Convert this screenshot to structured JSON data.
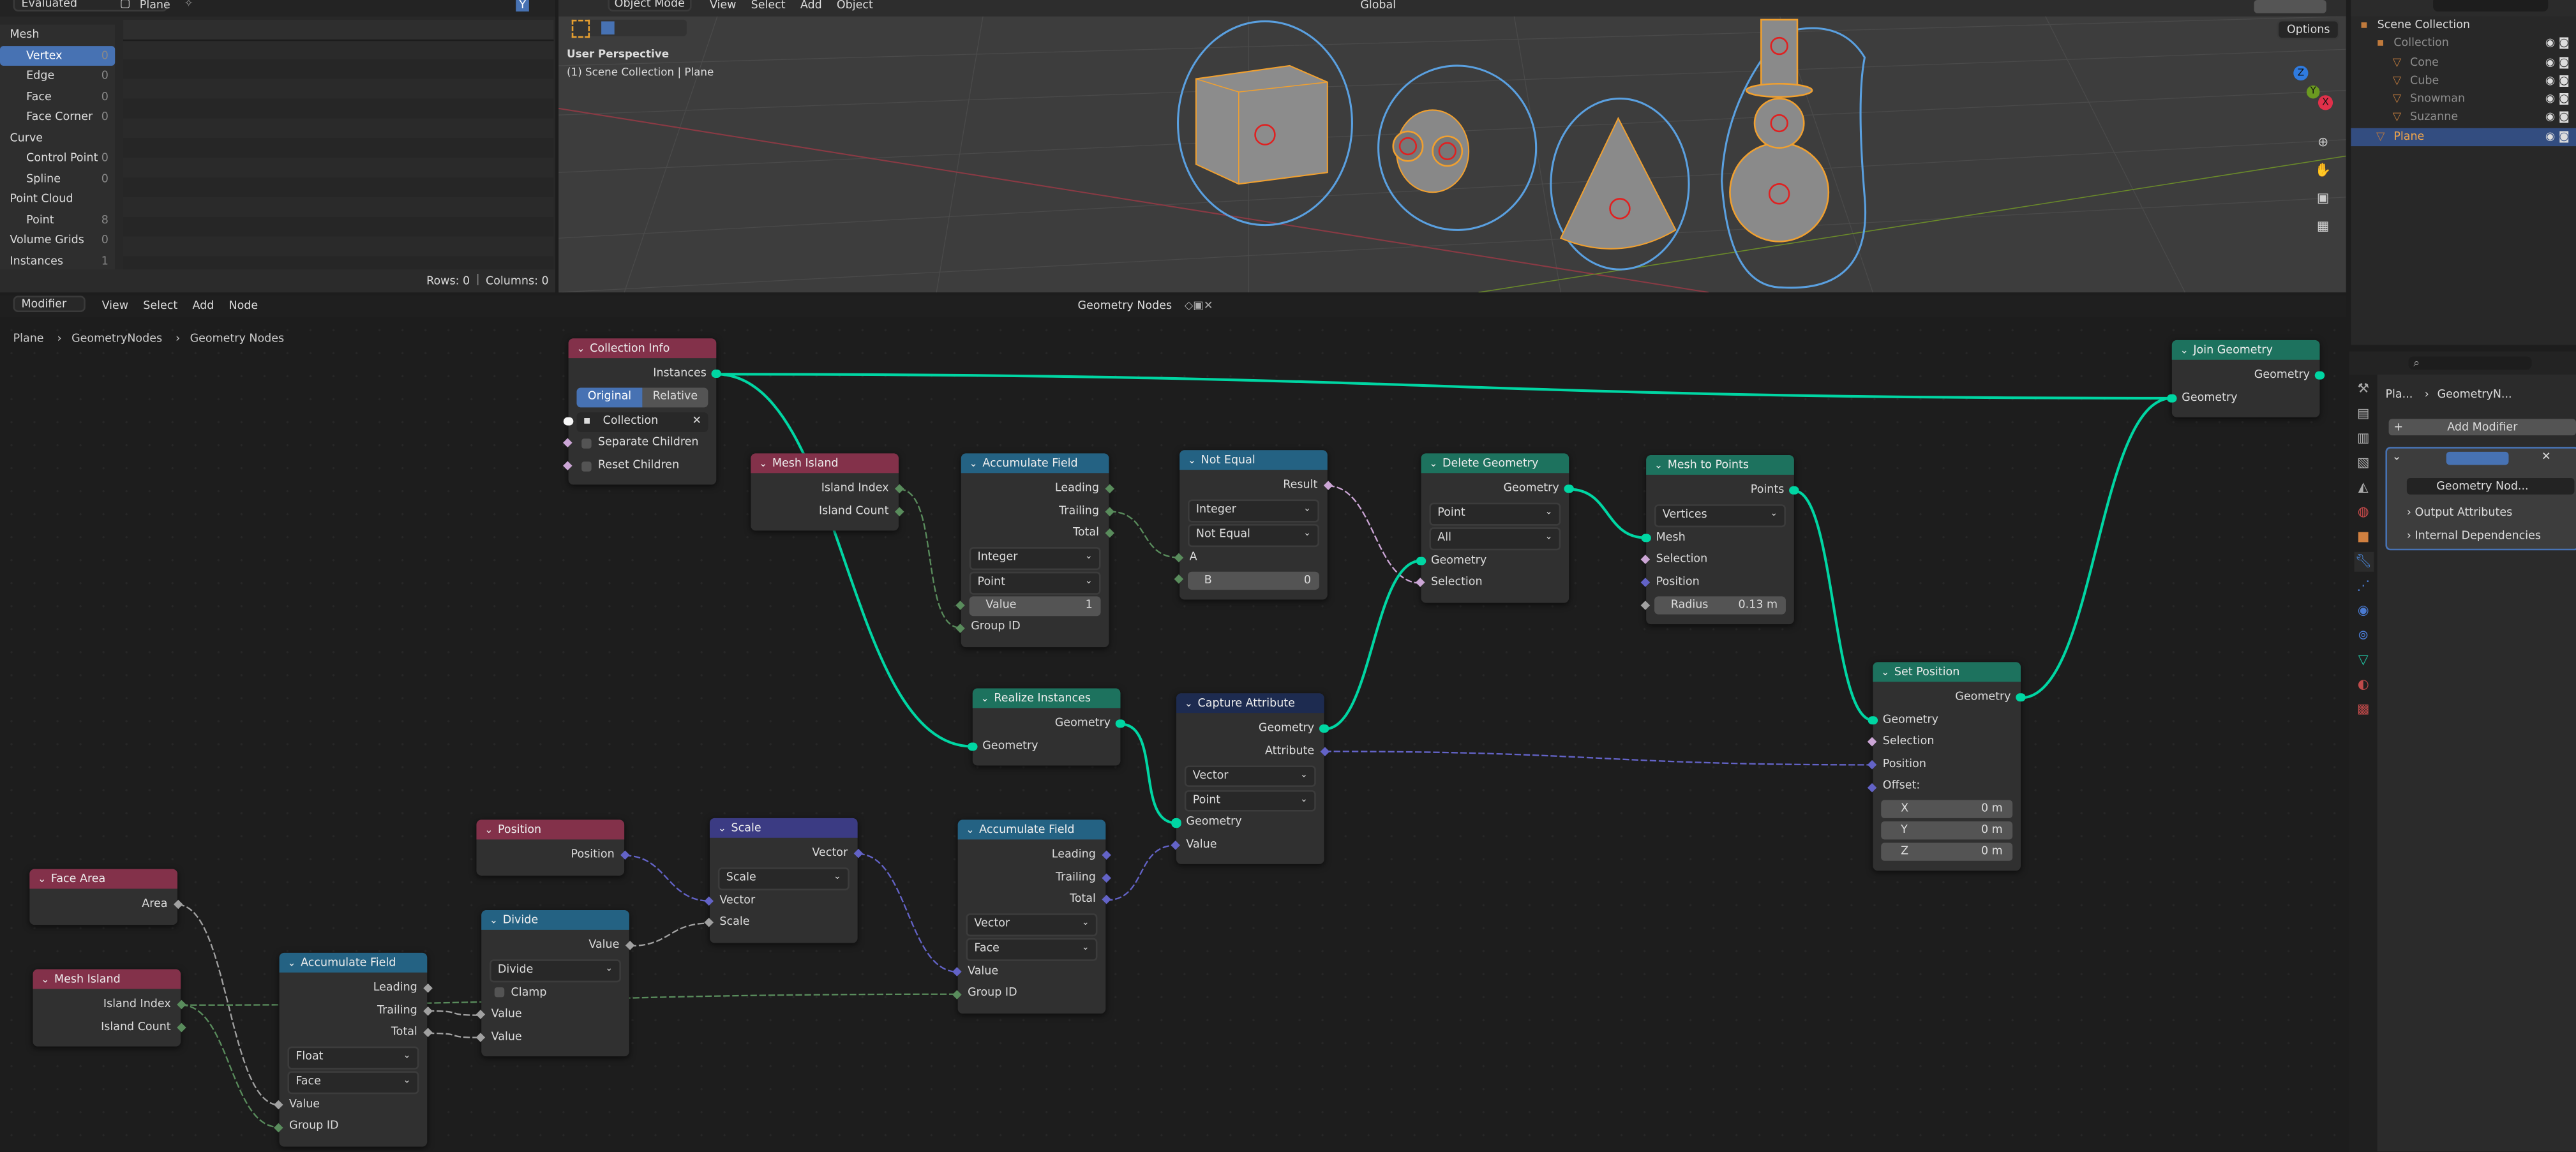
{
  "spreadsheet": {
    "display_mode": "Evaluated",
    "object": "Plane",
    "domains": [
      {
        "label": "Mesh",
        "group": true
      },
      {
        "label": "Vertex",
        "count": "0",
        "selected": true
      },
      {
        "label": "Edge",
        "count": "0"
      },
      {
        "label": "Face",
        "count": "0"
      },
      {
        "label": "Face Corner",
        "count": "0"
      },
      {
        "label": "Curve",
        "group": true
      },
      {
        "label": "Control Point",
        "count": "0"
      },
      {
        "label": "Spline",
        "count": "0"
      },
      {
        "label": "Point Cloud",
        "group": true
      },
      {
        "label": "Point",
        "count": "8"
      },
      {
        "label": "Volume Grids",
        "count": "0",
        "group": true
      },
      {
        "label": "Instances",
        "count": "1",
        "group": true
      }
    ],
    "rows": "Rows: 0",
    "columns": "Columns: 0"
  },
  "viewport": {
    "mode": "Object Mode",
    "menu": [
      "View",
      "Select",
      "Add",
      "Object"
    ],
    "orientation": "Global",
    "options": "Options",
    "view_name": "User Perspective",
    "context": "(1) Scene Collection | Plane",
    "gizmo": {
      "z": "Z",
      "y": "Y",
      "x": "X"
    }
  },
  "outliner": {
    "items": [
      {
        "label": "Scene Collection",
        "level": 0
      },
      {
        "label": "Collection",
        "level": 1,
        "dim": true
      },
      {
        "label": "Cone",
        "level": 2,
        "dim": true
      },
      {
        "label": "Cube",
        "level": 2,
        "dim": true
      },
      {
        "label": "Snowman",
        "level": 2,
        "dim": true
      },
      {
        "label": "Suzanne",
        "level": 2,
        "dim": true
      },
      {
        "label": "Plane",
        "level": 1,
        "selected": true
      }
    ]
  },
  "node_editor": {
    "editor_type": "Modifier",
    "menu": [
      "View",
      "Select",
      "Add",
      "Node"
    ],
    "tree_name": "Geometry Nodes",
    "breadcrumb": [
      "Plane",
      "GeometryNodes",
      "Geometry Nodes"
    ]
  },
  "colors": {
    "input": "#83314a",
    "utility": "#246283",
    "geometry": "#1d725e",
    "vector": "#3b3b83",
    "attribute": "#1d2b50",
    "sock_geometry": "#00d6a3",
    "sock_int": "#598c5c",
    "sock_bool": "#cca6d6",
    "sock_vector": "#6363c7",
    "sock_float": "#a1a1a1"
  },
  "nodes": [
    {
      "id": "collection_info",
      "title": "Collection Info",
      "kind": "input",
      "rows": [
        {
          "t": "out",
          "label": "Instances",
          "s": "geometry",
          "key": "instances"
        },
        {
          "t": "toggle",
          "options": [
            "Original",
            "Relative"
          ]
        },
        {
          "t": "coll",
          "label": "Collection",
          "s": "collection"
        },
        {
          "t": "check",
          "label": "Separate Children",
          "s": "bool"
        },
        {
          "t": "check",
          "label": "Reset Children",
          "s": "bool"
        }
      ]
    },
    {
      "id": "mesh_island_top",
      "title": "Mesh Island",
      "kind": "input",
      "rows": [
        {
          "t": "out",
          "label": "Island Index",
          "s": "int",
          "key": "index"
        },
        {
          "t": "out",
          "label": "Island Count",
          "s": "int",
          "key": "count"
        }
      ]
    },
    {
      "id": "acc_top",
      "title": "Accumulate Field",
      "kind": "utility",
      "rows": [
        {
          "t": "out",
          "label": "Leading",
          "s": "int",
          "key": "leading"
        },
        {
          "t": "out",
          "label": "Trailing",
          "s": "int",
          "key": "trailing"
        },
        {
          "t": "out",
          "label": "Total",
          "s": "int",
          "key": "total"
        },
        {
          "t": "select",
          "value": "Integer"
        },
        {
          "t": "select",
          "value": "Point"
        },
        {
          "t": "value",
          "label": "Value",
          "value": "1",
          "s": "int",
          "key": "value"
        },
        {
          "t": "in",
          "label": "Group ID",
          "s": "int",
          "key": "group"
        }
      ]
    },
    {
      "id": "not_equal",
      "title": "Not Equal",
      "kind": "utility",
      "rows": [
        {
          "t": "out",
          "label": "Result",
          "s": "bool",
          "key": "result"
        },
        {
          "t": "select",
          "value": "Integer"
        },
        {
          "t": "select",
          "value": "Not Equal"
        },
        {
          "t": "in",
          "label": "A",
          "s": "int",
          "key": "a"
        },
        {
          "t": "value",
          "label": "B",
          "value": "0",
          "s": "int",
          "key": "b"
        }
      ]
    },
    {
      "id": "delete_geometry",
      "title": "Delete Geometry",
      "kind": "geometry",
      "rows": [
        {
          "t": "out",
          "label": "Geometry",
          "s": "geometry",
          "key": "out"
        },
        {
          "t": "select",
          "value": "Point"
        },
        {
          "t": "select",
          "value": "All"
        },
        {
          "t": "in",
          "label": "Geometry",
          "s": "geometry",
          "key": "geo"
        },
        {
          "t": "in",
          "label": "Selection",
          "s": "bool",
          "key": "sel"
        }
      ]
    },
    {
      "id": "mesh_to_points",
      "title": "Mesh to Points",
      "kind": "geometry",
      "rows": [
        {
          "t": "out",
          "label": "Points",
          "s": "geometry",
          "key": "points"
        },
        {
          "t": "select",
          "value": "Vertices"
        },
        {
          "t": "in",
          "label": "Mesh",
          "s": "geometry",
          "key": "mesh"
        },
        {
          "t": "in",
          "label": "Selection",
          "s": "bool",
          "key": "sel"
        },
        {
          "t": "in",
          "label": "Position",
          "s": "vector",
          "key": "pos"
        },
        {
          "t": "value",
          "label": "Radius",
          "value": "0.13 m",
          "s": "float",
          "key": "radius"
        }
      ]
    },
    {
      "id": "join_geometry",
      "title": "Join Geometry",
      "kind": "geometry",
      "rows": [
        {
          "t": "out",
          "label": "Geometry",
          "s": "geometry",
          "key": "out"
        },
        {
          "t": "in",
          "label": "Geometry",
          "s": "geometry",
          "key": "geo"
        }
      ]
    },
    {
      "id": "realize_instances",
      "title": "Realize Instances",
      "kind": "geometry",
      "rows": [
        {
          "t": "out",
          "label": "Geometry",
          "s": "geometry",
          "key": "out"
        },
        {
          "t": "in",
          "label": "Geometry",
          "s": "geometry",
          "key": "geo"
        }
      ]
    },
    {
      "id": "capture_attribute",
      "title": "Capture Attribute",
      "kind": "attribute",
      "rows": [
        {
          "t": "out",
          "label": "Geometry",
          "s": "geometry",
          "key": "out"
        },
        {
          "t": "out",
          "label": "Attribute",
          "s": "vector",
          "key": "attr"
        },
        {
          "t": "select",
          "value": "Vector"
        },
        {
          "t": "select",
          "value": "Point"
        },
        {
          "t": "in",
          "label": "Geometry",
          "s": "geometry",
          "key": "geo"
        },
        {
          "t": "in",
          "label": "Value",
          "s": "vector",
          "key": "value"
        }
      ]
    },
    {
      "id": "set_position",
      "title": "Set Position",
      "kind": "geometry",
      "rows": [
        {
          "t": "out",
          "label": "Geometry",
          "s": "geometry",
          "key": "out"
        },
        {
          "t": "in",
          "label": "Geometry",
          "s": "geometry",
          "key": "geo"
        },
        {
          "t": "in",
          "label": "Selection",
          "s": "bool",
          "key": "sel"
        },
        {
          "t": "in",
          "label": "Position",
          "s": "vector",
          "key": "pos"
        },
        {
          "t": "in",
          "label": "Offset:",
          "s": "vector",
          "key": "offset"
        },
        {
          "t": "vec",
          "label": "X",
          "value": "0 m"
        },
        {
          "t": "vec",
          "label": "Y",
          "value": "0 m"
        },
        {
          "t": "vec",
          "label": "Z",
          "value": "0 m"
        }
      ]
    },
    {
      "id": "position",
      "title": "Position",
      "kind": "input",
      "rows": [
        {
          "t": "out",
          "label": "Position",
          "s": "vector",
          "key": "out"
        }
      ]
    },
    {
      "id": "scale",
      "title": "Scale",
      "kind": "vector",
      "rows": [
        {
          "t": "out",
          "label": "Vector",
          "s": "vector",
          "key": "out"
        },
        {
          "t": "select",
          "value": "Scale"
        },
        {
          "t": "in",
          "label": "Vector",
          "s": "vector",
          "key": "vec"
        },
        {
          "t": "in",
          "label": "Scale",
          "s": "float",
          "key": "scale"
        }
      ]
    },
    {
      "id": "acc_mid",
      "title": "Accumulate Field",
      "kind": "utility",
      "rows": [
        {
          "t": "out",
          "label": "Leading",
          "s": "vector",
          "key": "leading"
        },
        {
          "t": "out",
          "label": "Trailing",
          "s": "vector",
          "key": "trailing"
        },
        {
          "t": "out",
          "label": "Total",
          "s": "vector",
          "key": "total"
        },
        {
          "t": "select",
          "value": "Vector"
        },
        {
          "t": "select",
          "value": "Face"
        },
        {
          "t": "in",
          "label": "Value",
          "s": "vector",
          "key": "value"
        },
        {
          "t": "in",
          "label": "Group ID",
          "s": "int",
          "key": "group"
        }
      ]
    },
    {
      "id": "face_area",
      "title": "Face Area",
      "kind": "input",
      "rows": [
        {
          "t": "out",
          "label": "Area",
          "s": "float",
          "key": "area"
        }
      ]
    },
    {
      "id": "mesh_island_bot",
      "title": "Mesh Island",
      "kind": "input",
      "rows": [
        {
          "t": "out",
          "label": "Island Index",
          "s": "int",
          "key": "index"
        },
        {
          "t": "out",
          "label": "Island Count",
          "s": "int",
          "key": "count"
        }
      ]
    },
    {
      "id": "acc_bot",
      "title": "Accumulate Field",
      "kind": "utility",
      "rows": [
        {
          "t": "out",
          "label": "Leading",
          "s": "float",
          "key": "leading"
        },
        {
          "t": "out",
          "label": "Trailing",
          "s": "float",
          "key": "trailing"
        },
        {
          "t": "out",
          "label": "Total",
          "s": "float",
          "key": "total"
        },
        {
          "t": "select",
          "value": "Float"
        },
        {
          "t": "select",
          "value": "Face"
        },
        {
          "t": "in",
          "label": "Value",
          "s": "float",
          "key": "value"
        },
        {
          "t": "in",
          "label": "Group ID",
          "s": "int",
          "key": "group"
        }
      ]
    },
    {
      "id": "divide",
      "title": "Divide",
      "kind": "utility",
      "rows": [
        {
          "t": "out",
          "label": "Value",
          "s": "float",
          "key": "out"
        },
        {
          "t": "select",
          "value": "Divide"
        },
        {
          "t": "check",
          "label": "Clamp"
        },
        {
          "t": "in",
          "label": "Value",
          "s": "float",
          "key": "a"
        },
        {
          "t": "in",
          "label": "Value",
          "s": "float",
          "key": "b"
        }
      ]
    }
  ],
  "links": [
    {
      "from": "collection_info.instances",
      "to": "join_geometry.geo",
      "s": "geometry"
    },
    {
      "from": "collection_info.instances",
      "to": "realize_instances.geo",
      "s": "geometry"
    },
    {
      "from": "mesh_island_top.index",
      "to": "acc_top.group",
      "s": "int",
      "dashed": true
    },
    {
      "from": "acc_top.trailing",
      "to": "not_equal.a",
      "s": "int",
      "dashed": true
    },
    {
      "from": "not_equal.result",
      "to": "delete_geometry.sel",
      "s": "bool",
      "dashed": true
    },
    {
      "from": "capture_attribute.out",
      "to": "delete_geometry.geo",
      "s": "geometry"
    },
    {
      "from": "delete_geometry.out",
      "to": "mesh_to_points.mesh",
      "s": "geometry"
    },
    {
      "from": "mesh_to_points.points",
      "to": "set_position.geo",
      "s": "geometry"
    },
    {
      "from": "set_position.out",
      "to": "join_geometry.geo",
      "s": "geometry"
    },
    {
      "from": "realize_instances.out",
      "to": "capture_attribute.geo",
      "s": "geometry"
    },
    {
      "from": "capture_attribute.attr",
      "to": "set_position.pos",
      "s": "vector",
      "dashed": true
    },
    {
      "from": "acc_mid.total",
      "to": "capture_attribute.value",
      "s": "vector",
      "dashed": true
    },
    {
      "from": "scale.out",
      "to": "acc_mid.value",
      "s": "vector",
      "dashed": true
    },
    {
      "from": "position.out",
      "to": "scale.vec",
      "s": "vector",
      "dashed": true
    },
    {
      "from": "divide.out",
      "to": "scale.scale",
      "s": "float",
      "dashed": true
    },
    {
      "from": "acc_bot.trailing",
      "to": "divide.a",
      "s": "float",
      "dashed": true
    },
    {
      "from": "acc_bot.total",
      "to": "divide.b",
      "s": "float",
      "dashed": true
    },
    {
      "from": "face_area.area",
      "to": "acc_bot.value",
      "s": "float",
      "dashed": true
    },
    {
      "from": "mesh_island_bot.index",
      "to": "acc_bot.group",
      "s": "int",
      "dashed": true
    },
    {
      "from": "mesh_island_bot.index",
      "to": "acc_mid.group",
      "s": "int",
      "dashed": true
    }
  ],
  "properties": {
    "breadcrumb": [
      "Pla...",
      "GeometryN..."
    ],
    "add_modifier": "Add Modifier",
    "node_group": "Geometry Nod...",
    "panels": [
      "Output Attributes",
      "Internal Dependencies"
    ]
  }
}
